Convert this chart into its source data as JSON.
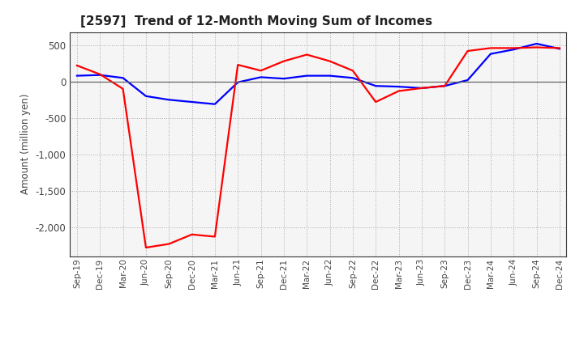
{
  "title": "[2597]  Trend of 12-Month Moving Sum of Incomes",
  "ylabel": "Amount (million yen)",
  "background_color": "#ffffff",
  "plot_bg_color": "#f5f5f5",
  "grid_color": "#aaaaaa",
  "x_labels": [
    "Sep-19",
    "Dec-19",
    "Mar-20",
    "Jun-20",
    "Sep-20",
    "Dec-20",
    "Mar-21",
    "Jun-21",
    "Sep-21",
    "Dec-21",
    "Mar-22",
    "Jun-22",
    "Sep-22",
    "Dec-22",
    "Mar-23",
    "Jun-23",
    "Sep-23",
    "Dec-23",
    "Mar-24",
    "Jun-24",
    "Sep-24",
    "Dec-24"
  ],
  "ordinary_income": [
    80,
    90,
    50,
    -200,
    -250,
    -280,
    -310,
    -10,
    60,
    40,
    80,
    80,
    50,
    -60,
    -70,
    -90,
    -60,
    20,
    380,
    440,
    520,
    450
  ],
  "net_income": [
    220,
    100,
    -100,
    -2280,
    -2230,
    -2100,
    -2130,
    230,
    150,
    280,
    370,
    280,
    150,
    -280,
    -130,
    -90,
    -60,
    420,
    460,
    460,
    470,
    460
  ],
  "ordinary_income_color": "#0000ff",
  "net_income_color": "#ff0000",
  "ylim_min": -2400,
  "ylim_max": 680,
  "yticks": [
    500,
    0,
    -500,
    -1000,
    -1500,
    -2000
  ],
  "line_width": 1.6,
  "title_color": "#222222",
  "tick_color": "#444444"
}
